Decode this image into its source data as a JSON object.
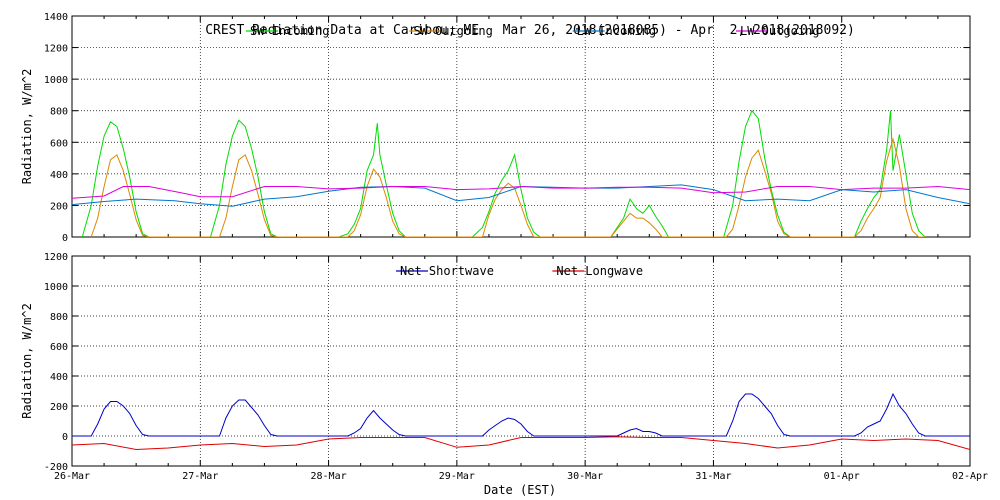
{
  "title": "CREST Radiation Data at Caribou, ME   Mar 26, 2018(2018085) - Apr  2, 2018(2018092)",
  "xlabel": "Date (EST)",
  "chart_data": [
    {
      "type": "line",
      "title": "CREST Radiation Data at Caribou, ME   Mar 26, 2018(2018085) - Apr  2, 2018(2018092)",
      "ylabel": "Radiation, W/m^2",
      "xlabel": "",
      "ylim": [
        0,
        1400
      ],
      "yticks": [
        0,
        200,
        400,
        600,
        800,
        1000,
        1200,
        1400
      ],
      "xlim": [
        0,
        7
      ],
      "xtick_labels": [
        "26-Mar",
        "27-Mar",
        "28-Mar",
        "29-Mar",
        "30-Mar",
        "31-Mar",
        "01-Apr",
        "02-Apr"
      ],
      "grid": true,
      "legend": "top",
      "series": [
        {
          "name": "SW Incoming",
          "color": "#00dd00",
          "x": [
            0.08,
            0.15,
            0.2,
            0.25,
            0.3,
            0.35,
            0.4,
            0.45,
            0.5,
            0.55,
            0.6,
            0.65,
            1.08,
            1.15,
            1.2,
            1.25,
            1.3,
            1.35,
            1.4,
            1.45,
            1.5,
            1.55,
            1.6,
            1.65,
            2.08,
            2.15,
            2.2,
            2.25,
            2.3,
            2.35,
            2.38,
            2.4,
            2.45,
            2.5,
            2.55,
            2.6,
            2.65,
            3.12,
            3.2,
            3.25,
            3.3,
            3.35,
            3.4,
            3.45,
            3.5,
            3.55,
            3.6,
            3.65,
            4.2,
            4.25,
            4.3,
            4.35,
            4.4,
            4.45,
            4.5,
            4.55,
            4.6,
            4.65,
            5.08,
            5.15,
            5.2,
            5.25,
            5.3,
            5.35,
            5.38,
            5.4,
            5.45,
            5.5,
            5.55,
            5.6,
            5.65,
            6.1,
            6.15,
            6.2,
            6.25,
            6.3,
            6.35,
            6.38,
            6.4,
            6.45,
            6.5,
            6.55,
            6.6,
            6.65
          ],
          "y": [
            0,
            200,
            450,
            640,
            730,
            700,
            560,
            380,
            160,
            20,
            0,
            0,
            0,
            200,
            460,
            640,
            740,
            700,
            560,
            380,
            160,
            20,
            0,
            0,
            0,
            20,
            80,
            180,
            420,
            520,
            720,
            520,
            330,
            150,
            40,
            0,
            0,
            0,
            60,
            160,
            280,
            360,
            420,
            520,
            300,
            120,
            30,
            0,
            0,
            60,
            120,
            240,
            180,
            150,
            200,
            130,
            70,
            0,
            0,
            200,
            480,
            700,
            800,
            750,
            600,
            500,
            300,
            140,
            30,
            0,
            0,
            0,
            100,
            180,
            250,
            300,
            550,
            800,
            420,
            650,
            400,
            150,
            40,
            0
          ]
        },
        {
          "name": "SW Outgoing",
          "color": "#dd8800",
          "x": [
            0.15,
            0.2,
            0.25,
            0.3,
            0.35,
            0.4,
            0.45,
            0.5,
            0.55,
            0.6,
            0.65,
            1.15,
            1.2,
            1.25,
            1.3,
            1.35,
            1.4,
            1.45,
            1.5,
            1.55,
            1.6,
            1.65,
            2.15,
            2.2,
            2.25,
            2.3,
            2.35,
            2.4,
            2.45,
            2.5,
            2.55,
            2.6,
            2.65,
            3.2,
            3.25,
            3.3,
            3.35,
            3.4,
            3.45,
            3.5,
            3.55,
            3.6,
            3.65,
            4.2,
            4.25,
            4.3,
            4.35,
            4.4,
            4.45,
            4.5,
            4.55,
            4.6,
            4.65,
            5.1,
            5.15,
            5.2,
            5.25,
            5.3,
            5.35,
            5.4,
            5.45,
            5.5,
            5.55,
            5.6,
            5.65,
            6.1,
            6.15,
            6.2,
            6.25,
            6.3,
            6.35,
            6.4,
            6.45,
            6.5,
            6.55,
            6.6,
            6.65
          ],
          "y": [
            0,
            120,
            320,
            490,
            520,
            420,
            270,
            110,
            10,
            0,
            0,
            0,
            120,
            320,
            490,
            520,
            420,
            270,
            110,
            10,
            0,
            0,
            0,
            40,
            140,
            320,
            430,
            380,
            250,
            100,
            20,
            0,
            0,
            0,
            140,
            240,
            300,
            340,
            310,
            200,
            80,
            0,
            0,
            0,
            50,
            100,
            150,
            120,
            120,
            90,
            50,
            0,
            0,
            0,
            50,
            200,
            380,
            500,
            550,
            420,
            280,
            100,
            20,
            0,
            0,
            0,
            40,
            120,
            180,
            250,
            480,
            620,
            450,
            180,
            40,
            0,
            0
          ]
        },
        {
          "name": "LW Incoming",
          "color": "#0077cc",
          "x": [
            0.0,
            0.25,
            0.5,
            0.8,
            1.0,
            1.25,
            1.5,
            1.75,
            2.0,
            2.25,
            2.5,
            2.75,
            3.0,
            3.25,
            3.5,
            3.75,
            4.0,
            4.25,
            4.5,
            4.75,
            5.0,
            5.25,
            5.5,
            5.75,
            6.0,
            6.25,
            6.5,
            6.75,
            7.0
          ],
          "y": [
            205,
            225,
            240,
            230,
            210,
            195,
            240,
            255,
            290,
            315,
            320,
            310,
            230,
            250,
            320,
            315,
            310,
            310,
            320,
            330,
            300,
            230,
            240,
            230,
            300,
            285,
            300,
            250,
            210
          ]
        },
        {
          "name": "LW Outgoing",
          "color": "#dd00dd",
          "x": [
            0.0,
            0.25,
            0.4,
            0.6,
            0.85,
            1.0,
            1.25,
            1.5,
            1.75,
            2.0,
            2.25,
            2.5,
            2.75,
            3.0,
            3.25,
            3.5,
            3.75,
            4.0,
            4.25,
            4.5,
            4.75,
            5.0,
            5.25,
            5.5,
            5.75,
            6.0,
            6.25,
            6.5,
            6.75,
            7.0
          ],
          "y": [
            245,
            260,
            320,
            320,
            280,
            255,
            255,
            320,
            320,
            305,
            310,
            320,
            320,
            300,
            305,
            320,
            310,
            310,
            315,
            315,
            310,
            280,
            285,
            320,
            320,
            300,
            310,
            310,
            320,
            300
          ]
        }
      ]
    },
    {
      "type": "line",
      "title": "",
      "ylabel": "Radiation, W/m^2",
      "xlabel": "Date (EST)",
      "ylim": [
        -200,
        1200
      ],
      "yticks": [
        -200,
        0,
        200,
        400,
        600,
        800,
        1000,
        1200
      ],
      "xlim": [
        0,
        7
      ],
      "xtick_labels": [
        "26-Mar",
        "27-Mar",
        "28-Mar",
        "29-Mar",
        "30-Mar",
        "31-Mar",
        "01-Apr",
        "02-Apr"
      ],
      "grid": true,
      "legend": "top",
      "series": [
        {
          "name": "Net Shortwave",
          "color": "#0000cc",
          "x": [
            0.0,
            0.15,
            0.2,
            0.25,
            0.3,
            0.35,
            0.4,
            0.45,
            0.5,
            0.55,
            0.6,
            0.65,
            1.0,
            1.15,
            1.2,
            1.25,
            1.3,
            1.35,
            1.4,
            1.45,
            1.5,
            1.55,
            1.6,
            1.65,
            2.0,
            2.15,
            2.2,
            2.25,
            2.3,
            2.35,
            2.4,
            2.45,
            2.5,
            2.55,
            2.6,
            2.65,
            3.0,
            3.2,
            3.25,
            3.3,
            3.35,
            3.4,
            3.45,
            3.5,
            3.55,
            3.6,
            3.65,
            4.0,
            4.25,
            4.3,
            4.35,
            4.4,
            4.45,
            4.5,
            4.55,
            4.6,
            4.65,
            5.0,
            5.1,
            5.15,
            5.2,
            5.25,
            5.3,
            5.35,
            5.4,
            5.45,
            5.5,
            5.55,
            5.6,
            5.65,
            6.0,
            6.1,
            6.15,
            6.2,
            6.25,
            6.3,
            6.35,
            6.4,
            6.45,
            6.5,
            6.55,
            6.6,
            6.65,
            6.8,
            7.0
          ],
          "y": [
            0,
            0,
            80,
            180,
            230,
            230,
            200,
            150,
            70,
            10,
            0,
            0,
            0,
            0,
            120,
            200,
            240,
            240,
            190,
            140,
            70,
            10,
            0,
            0,
            0,
            0,
            20,
            50,
            120,
            170,
            120,
            80,
            40,
            10,
            0,
            0,
            0,
            0,
            40,
            70,
            100,
            120,
            110,
            80,
            30,
            0,
            0,
            0,
            0,
            20,
            40,
            50,
            30,
            30,
            20,
            0,
            0,
            0,
            0,
            100,
            230,
            280,
            280,
            250,
            200,
            150,
            70,
            10,
            0,
            0,
            0,
            0,
            20,
            60,
            80,
            100,
            180,
            280,
            200,
            150,
            80,
            20,
            0,
            0,
            0
          ]
        },
        {
          "name": "Net Longwave",
          "color": "#dd0000",
          "x": [
            0.0,
            0.25,
            0.5,
            0.75,
            1.0,
            1.25,
            1.5,
            1.75,
            2.0,
            2.25,
            2.5,
            2.75,
            3.0,
            3.25,
            3.5,
            3.75,
            4.0,
            4.25,
            4.5,
            4.75,
            5.0,
            5.25,
            5.5,
            5.75,
            6.0,
            6.25,
            6.5,
            6.75,
            7.0
          ],
          "y": [
            -60,
            -50,
            -90,
            -80,
            -60,
            -50,
            -70,
            -60,
            -20,
            -10,
            -10,
            -10,
            -75,
            -60,
            -10,
            -10,
            -10,
            -5,
            -10,
            -10,
            -30,
            -50,
            -80,
            -60,
            -20,
            -30,
            -20,
            -30,
            -90
          ]
        }
      ]
    }
  ]
}
